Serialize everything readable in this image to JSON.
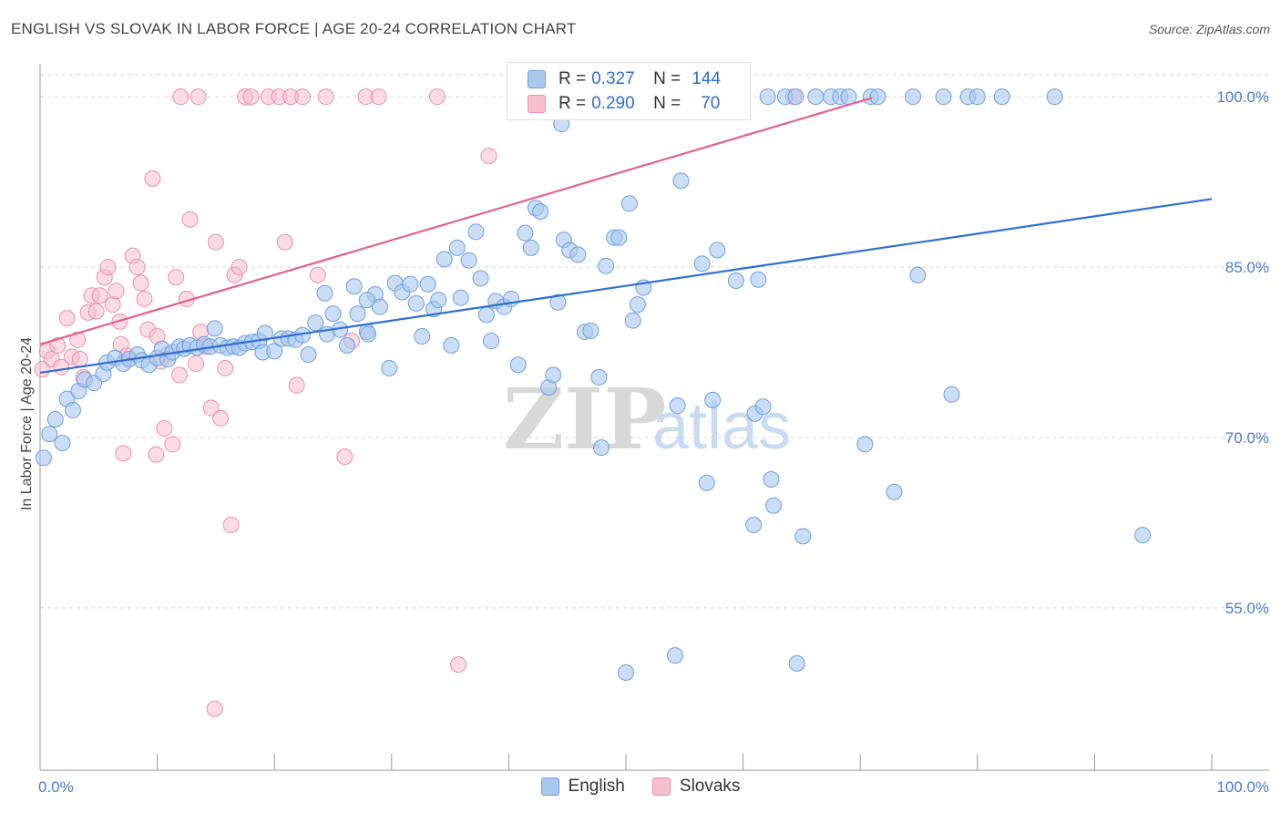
{
  "title": "ENGLISH VS SLOVAK IN LABOR FORCE | AGE 20-24 CORRELATION CHART",
  "source": "Source: ZipAtlas.com",
  "watermark": {
    "zip": "ZIP",
    "atlas": "atlas"
  },
  "legend": {
    "english": {
      "r_label": "R =",
      "r_value": "0.327",
      "n_label": "N =",
      "n_value": "144"
    },
    "slovaks": {
      "r_label": "R =",
      "r_value": "0.290",
      "n_label": "N =",
      "n_value": "70"
    }
  },
  "bottom_legend": {
    "english": "English",
    "slovaks": "Slovaks"
  },
  "colors": {
    "english_fill": "#a9c8f0",
    "english_stroke": "#6f9fdf",
    "english_line": "#2f6fd0",
    "slovak_fill": "#f8bfd0",
    "slovak_stroke": "#ec8fae",
    "slovak_line": "#e2628c",
    "tick": "#4a7cc9"
  },
  "chart_data": {
    "type": "scatter",
    "title": "ENGLISH VS SLOVAK IN LABOR FORCE | AGE 20-24 CORRELATION CHART",
    "xlabel": "",
    "ylabel": "In Labor Force | Age 20-24",
    "xlim": [
      0,
      100
    ],
    "ylim": [
      40.7,
      102.1
    ],
    "x_tick_labels": [
      "0.0%",
      "100.0%"
    ],
    "y_ticks": [
      55,
      70,
      85,
      100
    ],
    "y_tick_labels": [
      "55.0%",
      "70.0%",
      "85.0%",
      "100.0%"
    ],
    "series": [
      {
        "name": "English",
        "trend": {
          "x": [
            0,
            100
          ],
          "y": [
            75.7,
            91.0
          ]
        },
        "points": [
          [
            0.3,
            68.2
          ],
          [
            0.8,
            70.3
          ],
          [
            1.3,
            71.6
          ],
          [
            1.9,
            69.5
          ],
          [
            2.3,
            73.4
          ],
          [
            2.8,
            72.4
          ],
          [
            3.3,
            74.1
          ],
          [
            3.8,
            75.1
          ],
          [
            4.6,
            74.8
          ],
          [
            5.4,
            75.6
          ],
          [
            5.7,
            76.6
          ],
          [
            6.4,
            77.0
          ],
          [
            7.1,
            76.5
          ],
          [
            7.6,
            76.9
          ],
          [
            8.3,
            77.3
          ],
          [
            8.7,
            76.8
          ],
          [
            9.3,
            76.4
          ],
          [
            10.0,
            77.0
          ],
          [
            10.4,
            77.8
          ],
          [
            10.9,
            76.9
          ],
          [
            11.3,
            77.5
          ],
          [
            11.9,
            78.0
          ],
          [
            12.3,
            77.8
          ],
          [
            12.8,
            78.1
          ],
          [
            13.4,
            77.9
          ],
          [
            14.0,
            78.2
          ],
          [
            14.5,
            78.0
          ],
          [
            14.9,
            79.6
          ],
          [
            15.4,
            78.1
          ],
          [
            16.0,
            77.9
          ],
          [
            16.5,
            78.0
          ],
          [
            17.0,
            77.9
          ],
          [
            17.5,
            78.3
          ],
          [
            18.1,
            78.4
          ],
          [
            18.7,
            78.5
          ],
          [
            19.2,
            79.2
          ],
          [
            19.0,
            77.5
          ],
          [
            20.0,
            77.6
          ],
          [
            20.6,
            78.7
          ],
          [
            21.2,
            78.7
          ],
          [
            21.8,
            78.6
          ],
          [
            22.4,
            79.0
          ],
          [
            22.9,
            77.3
          ],
          [
            23.5,
            80.1
          ],
          [
            24.3,
            82.7
          ],
          [
            24.5,
            79.1
          ],
          [
            25.0,
            80.9
          ],
          [
            25.6,
            79.5
          ],
          [
            26.2,
            78.1
          ],
          [
            26.8,
            83.3
          ],
          [
            27.1,
            80.9
          ],
          [
            27.9,
            79.3
          ],
          [
            28.6,
            82.6
          ],
          [
            29.0,
            81.5
          ],
          [
            29.8,
            76.1
          ],
          [
            28.0,
            79.1
          ],
          [
            30.3,
            83.6
          ],
          [
            30.9,
            82.8
          ],
          [
            31.6,
            83.5
          ],
          [
            32.1,
            81.8
          ],
          [
            32.6,
            78.9
          ],
          [
            33.1,
            83.5
          ],
          [
            33.6,
            81.3
          ],
          [
            34.0,
            82.1
          ],
          [
            34.5,
            85.7
          ],
          [
            35.1,
            78.1
          ],
          [
            35.6,
            86.7
          ],
          [
            35.9,
            82.3
          ],
          [
            36.6,
            85.6
          ],
          [
            37.2,
            88.1
          ],
          [
            37.6,
            84.0
          ],
          [
            38.1,
            80.8
          ],
          [
            38.5,
            78.5
          ],
          [
            38.9,
            82.0
          ],
          [
            39.6,
            81.5
          ],
          [
            40.2,
            82.2
          ],
          [
            40.8,
            76.4
          ],
          [
            41.4,
            88.0
          ],
          [
            41.9,
            86.7
          ],
          [
            42.3,
            90.2
          ],
          [
            42.7,
            89.9
          ],
          [
            43.4,
            74.4
          ],
          [
            43.8,
            75.5
          ],
          [
            44.2,
            81.9
          ],
          [
            44.7,
            87.4
          ],
          [
            45.2,
            86.5
          ],
          [
            45.9,
            86.1
          ],
          [
            46.5,
            79.3
          ],
          [
            47.0,
            79.4
          ],
          [
            47.7,
            75.3
          ],
          [
            47.9,
            69.1
          ],
          [
            48.3,
            85.1
          ],
          [
            49.0,
            87.6
          ],
          [
            49.4,
            87.6
          ],
          [
            50.3,
            90.6
          ],
          [
            50.6,
            80.3
          ],
          [
            51.0,
            81.7
          ],
          [
            51.5,
            83.2
          ],
          [
            52.4,
            100.0
          ],
          [
            53.6,
            100.0
          ],
          [
            54.2,
            100.0
          ],
          [
            54.7,
            92.6
          ],
          [
            54.4,
            72.8
          ],
          [
            56.0,
            100.0
          ],
          [
            56.5,
            85.3
          ],
          [
            56.9,
            66.0
          ],
          [
            57.4,
            73.3
          ],
          [
            57.8,
            86.5
          ],
          [
            58.9,
            100.0
          ],
          [
            59.4,
            83.8
          ],
          [
            59.9,
            100.0
          ],
          [
            61.0,
            72.1
          ],
          [
            61.3,
            83.9
          ],
          [
            61.7,
            72.7
          ],
          [
            62.1,
            100.0
          ],
          [
            62.4,
            66.3
          ],
          [
            63.6,
            100.0
          ],
          [
            64.5,
            100.0
          ],
          [
            65.1,
            61.3
          ],
          [
            66.2,
            100.0
          ],
          [
            67.5,
            100.0
          ],
          [
            68.3,
            100.0
          ],
          [
            69.0,
            100.0
          ],
          [
            70.4,
            69.4
          ],
          [
            70.9,
            100.0
          ],
          [
            71.5,
            100.0
          ],
          [
            72.9,
            65.2
          ],
          [
            74.5,
            100.0
          ],
          [
            74.9,
            84.3
          ],
          [
            77.1,
            100.0
          ],
          [
            77.8,
            73.8
          ],
          [
            79.2,
            100.0
          ],
          [
            80.0,
            100.0
          ],
          [
            82.1,
            100.0
          ],
          [
            86.6,
            100.0
          ],
          [
            94.1,
            61.4
          ],
          [
            62.6,
            64.0
          ],
          [
            60.9,
            62.3
          ],
          [
            54.2,
            50.8
          ],
          [
            50.0,
            49.3
          ],
          [
            64.6,
            50.1
          ],
          [
            52.0,
            100.0
          ],
          [
            27.9,
            82.1
          ],
          [
            44.5,
            97.6
          ]
        ]
      },
      {
        "name": "Slovaks",
        "trend": {
          "x": [
            0,
            71
          ],
          "y": [
            78.2,
            99.9
          ]
        },
        "points": [
          [
            0.2,
            76.0
          ],
          [
            0.6,
            77.6
          ],
          [
            1.0,
            76.9
          ],
          [
            1.5,
            78.1
          ],
          [
            1.8,
            76.2
          ],
          [
            2.3,
            80.5
          ],
          [
            2.7,
            77.1
          ],
          [
            3.2,
            78.6
          ],
          [
            3.4,
            76.9
          ],
          [
            3.7,
            75.3
          ],
          [
            4.1,
            81.0
          ],
          [
            4.4,
            82.5
          ],
          [
            4.8,
            81.1
          ],
          [
            5.1,
            82.5
          ],
          [
            5.5,
            84.1
          ],
          [
            5.8,
            85.0
          ],
          [
            6.2,
            81.7
          ],
          [
            6.5,
            82.9
          ],
          [
            6.8,
            80.2
          ],
          [
            6.9,
            78.2
          ],
          [
            7.4,
            77.2
          ],
          [
            7.6,
            76.9
          ],
          [
            7.9,
            86.0
          ],
          [
            8.3,
            85.0
          ],
          [
            8.6,
            83.6
          ],
          [
            8.9,
            82.2
          ],
          [
            9.2,
            79.5
          ],
          [
            9.6,
            92.8
          ],
          [
            10.0,
            78.9
          ],
          [
            10.3,
            76.7
          ],
          [
            10.6,
            70.8
          ],
          [
            10.9,
            77.3
          ],
          [
            11.3,
            69.4
          ],
          [
            11.6,
            84.1
          ],
          [
            11.9,
            75.5
          ],
          [
            12.5,
            82.2
          ],
          [
            12.8,
            89.2
          ],
          [
            13.3,
            76.5
          ],
          [
            13.7,
            79.3
          ],
          [
            14.1,
            78.0
          ],
          [
            14.6,
            72.6
          ],
          [
            15.0,
            87.2
          ],
          [
            15.4,
            71.7
          ],
          [
            15.8,
            76.1
          ],
          [
            16.3,
            62.3
          ],
          [
            16.6,
            84.3
          ],
          [
            17.0,
            85.0
          ],
          [
            20.9,
            87.2
          ],
          [
            21.9,
            74.6
          ],
          [
            23.7,
            84.3
          ],
          [
            24.4,
            100.0
          ],
          [
            26.0,
            68.3
          ],
          [
            26.6,
            78.5
          ],
          [
            27.8,
            100.0
          ],
          [
            28.9,
            100.0
          ],
          [
            33.9,
            100.0
          ],
          [
            35.7,
            50.0
          ],
          [
            38.3,
            94.8
          ],
          [
            12.0,
            100.0
          ],
          [
            13.5,
            100.0
          ],
          [
            17.5,
            100.0
          ],
          [
            18.0,
            100.0
          ],
          [
            19.5,
            100.0
          ],
          [
            20.4,
            100.0
          ],
          [
            21.4,
            100.0
          ],
          [
            22.4,
            100.0
          ],
          [
            14.9,
            46.1
          ],
          [
            9.9,
            68.5
          ],
          [
            64.3,
            100.0
          ],
          [
            7.1,
            68.6
          ]
        ]
      }
    ]
  }
}
